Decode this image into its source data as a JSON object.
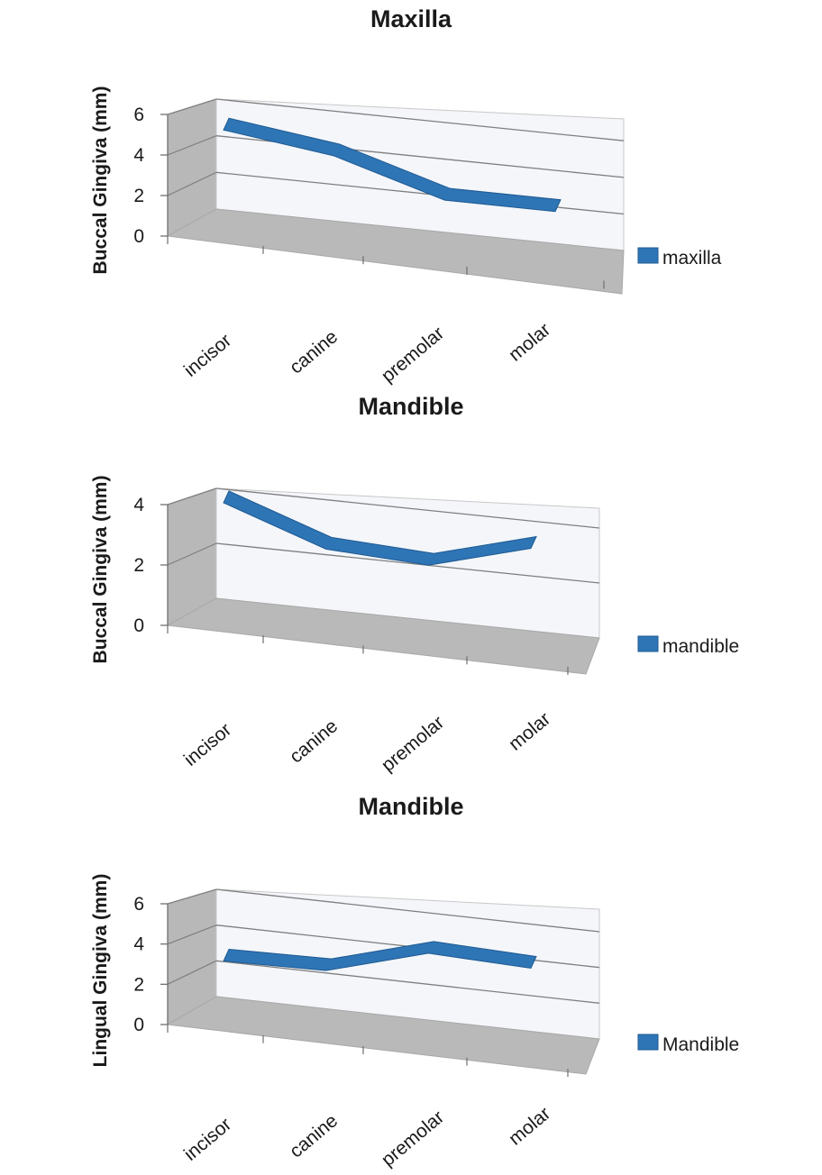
{
  "chart_data": [
    {
      "type": "line",
      "title": "Maxilla",
      "xlabel": "",
      "ylabel": "Buccal Gingiva (mm)",
      "categories": [
        "incisor",
        "canine",
        "premolar",
        "molar"
      ],
      "series": [
        {
          "name": "maxilla",
          "values": [
            5.1,
            4.3,
            2.5,
            2.5
          ]
        }
      ],
      "ylim": [
        0,
        6
      ],
      "yticks": [
        0,
        2,
        4,
        6
      ],
      "grid": true,
      "legend": "right",
      "color": "#2e75b6"
    },
    {
      "type": "line",
      "title": "Mandible",
      "xlabel": "",
      "ylabel": "Buccal Gingiva (mm)",
      "categories": [
        "incisor",
        "canine",
        "premolar",
        "molar"
      ],
      "series": [
        {
          "name": "mandible",
          "values": [
            4.0,
            2.7,
            2.5,
            3.5
          ]
        }
      ],
      "ylim": [
        0,
        4
      ],
      "yticks": [
        0,
        2,
        4
      ],
      "grid": true,
      "legend": "right",
      "color": "#2e75b6"
    },
    {
      "type": "line",
      "title": "Mandible",
      "xlabel": "",
      "ylabel": "Lingual Gingiva (mm)",
      "categories": [
        "incisor",
        "canine",
        "premolar",
        "molar"
      ],
      "series": [
        {
          "name": "Mandible",
          "values": [
            2.8,
            2.9,
            4.5,
            4.3
          ]
        }
      ],
      "ylim": [
        0,
        6
      ],
      "yticks": [
        0,
        2,
        4,
        6
      ],
      "grid": true,
      "legend": "right",
      "color": "#2e75b6"
    }
  ]
}
